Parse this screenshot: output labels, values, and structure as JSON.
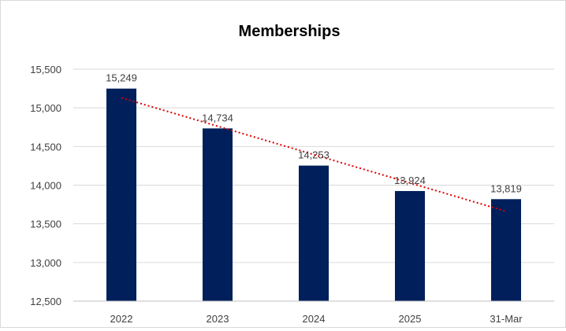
{
  "chart_data": {
    "type": "bar",
    "title": "Memberships",
    "xlabel": "",
    "ylabel": "",
    "categories": [
      "2022",
      "2023",
      "2024",
      "2025",
      "31-Mar"
    ],
    "values": [
      15249,
      14734,
      14253,
      13924,
      13819
    ],
    "data_labels": [
      "15,249",
      "14,734",
      "14,253",
      "13,924",
      "13,819"
    ],
    "ylim": [
      12500,
      15500
    ],
    "yticks": [
      12500,
      13000,
      13500,
      14000,
      14500,
      15000,
      15500
    ],
    "ytick_labels": [
      "12,500",
      "13,000",
      "13,500",
      "14,000",
      "14,500",
      "15,000",
      "15,500"
    ],
    "grid": true,
    "legend": "none",
    "bar_color": "#001f5b",
    "trendline": {
      "type": "linear",
      "style": "dotted",
      "color": "#e00000"
    }
  }
}
